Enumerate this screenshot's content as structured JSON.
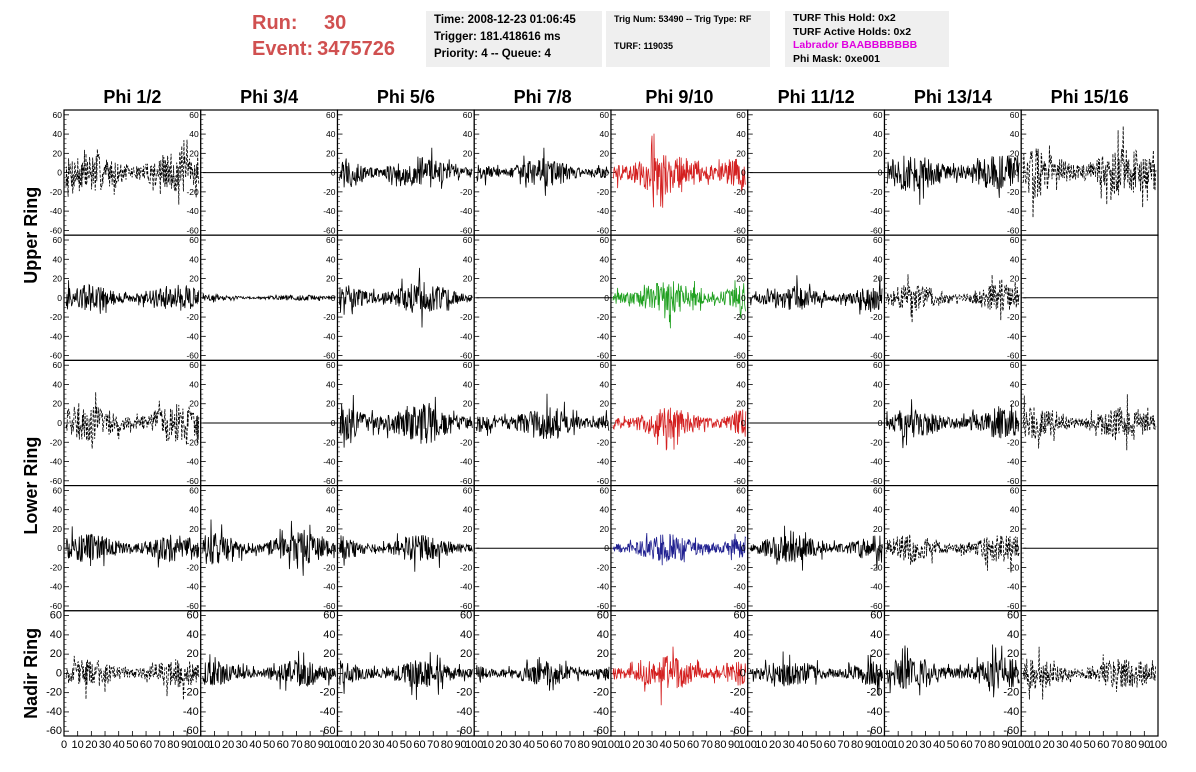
{
  "header": {
    "run_label": "Run:",
    "run_value": "30",
    "event_label": "Event:",
    "event_value": "3475726",
    "time_text": "Time: 2008-12-23 01:06:45",
    "trigger_text": "Trigger: 181.418616 ms",
    "priority_text": "Priority: 4 -- Queue: 4",
    "trig_text": "Trig Num: 53490 -- Trig Type: RF",
    "turf_text": "TURF: 119035",
    "turf_hold_text": "TURF This Hold: 0x2",
    "turf_active_text": "TURF Active Holds: 0x2",
    "labrador_text": "Labrador BAABBBBBBB",
    "phimask_text": "Phi Mask: 0xe001",
    "labrador_color": "#e000e0",
    "run_color": "#d05050"
  },
  "chart_data": {
    "type": "line",
    "columns": [
      "Phi 1/2",
      "Phi 3/4",
      "Phi 5/6",
      "Phi 7/8",
      "Phi 9/10",
      "Phi 11/12",
      "Phi 13/14",
      "Phi 15/16"
    ],
    "ring_labels": [
      "Upper Ring",
      "Lower Ring",
      "Nadir Ring"
    ],
    "ylim": [
      -65,
      65
    ],
    "yticks": [
      -60,
      -40,
      -20,
      0,
      20,
      40,
      60
    ],
    "xlim": [
      0,
      100
    ],
    "xticks": [
      0,
      10,
      20,
      30,
      40,
      50,
      60,
      70,
      80,
      90,
      100
    ],
    "samples": 260,
    "colors": {
      "black": "#000000",
      "red": "#d42020",
      "green": "#20a020",
      "blue": "#202090"
    },
    "panels": [
      [
        {
          "style": "dash",
          "amp": 22,
          "color": "black"
        },
        {
          "style": "flat",
          "amp": 0,
          "color": "black"
        },
        {
          "style": "solid",
          "amp": 17,
          "color": "black"
        },
        {
          "style": "solid",
          "amp": 15,
          "color": "black"
        },
        {
          "style": "solid",
          "amp": 26,
          "color": "red"
        },
        {
          "style": "flat",
          "amp": 0,
          "color": "black"
        },
        {
          "style": "solid",
          "amp": 20,
          "color": "black"
        },
        {
          "style": "dash",
          "amp": 26,
          "color": "black"
        }
      ],
      [
        {
          "style": "solid",
          "amp": 14,
          "color": "black"
        },
        {
          "style": "solid",
          "amp": 3,
          "color": "black"
        },
        {
          "style": "solid",
          "amp": 17,
          "color": "black"
        },
        {
          "style": "flat",
          "amp": 0,
          "color": "black"
        },
        {
          "style": "solid",
          "amp": 18,
          "color": "green"
        },
        {
          "style": "solid",
          "amp": 13,
          "color": "black"
        },
        {
          "style": "dash",
          "amp": 14,
          "color": "black"
        },
        {
          "style": "flat",
          "amp": 0,
          "color": "black"
        }
      ],
      [
        {
          "style": "dash",
          "amp": 20,
          "color": "black"
        },
        {
          "style": "flat",
          "amp": 0,
          "color": "black"
        },
        {
          "style": "solid",
          "amp": 22,
          "color": "black"
        },
        {
          "style": "solid",
          "amp": 17,
          "color": "black"
        },
        {
          "style": "solid",
          "amp": 17,
          "color": "red"
        },
        {
          "style": "flat",
          "amp": 0,
          "color": "black"
        },
        {
          "style": "solid",
          "amp": 16,
          "color": "black"
        },
        {
          "style": "dash",
          "amp": 17,
          "color": "black"
        }
      ],
      [
        {
          "style": "solid",
          "amp": 15,
          "color": "black"
        },
        {
          "style": "solid",
          "amp": 17,
          "color": "black"
        },
        {
          "style": "solid",
          "amp": 14,
          "color": "black"
        },
        {
          "style": "flat",
          "amp": 0,
          "color": "black"
        },
        {
          "style": "solid",
          "amp": 15,
          "color": "blue"
        },
        {
          "style": "solid",
          "amp": 15,
          "color": "black"
        },
        {
          "style": "dash",
          "amp": 15,
          "color": "black"
        },
        {
          "style": "flat",
          "amp": 0,
          "color": "black"
        }
      ],
      [
        {
          "style": "dash",
          "amp": 15,
          "color": "black"
        },
        {
          "style": "solid",
          "amp": 14,
          "color": "black"
        },
        {
          "style": "solid",
          "amp": 15,
          "color": "black"
        },
        {
          "style": "solid",
          "amp": 13,
          "color": "black"
        },
        {
          "style": "solid",
          "amp": 18,
          "color": "red"
        },
        {
          "style": "solid",
          "amp": 14,
          "color": "black"
        },
        {
          "style": "solid",
          "amp": 17,
          "color": "black"
        },
        {
          "style": "dash",
          "amp": 17,
          "color": "black"
        }
      ]
    ]
  }
}
